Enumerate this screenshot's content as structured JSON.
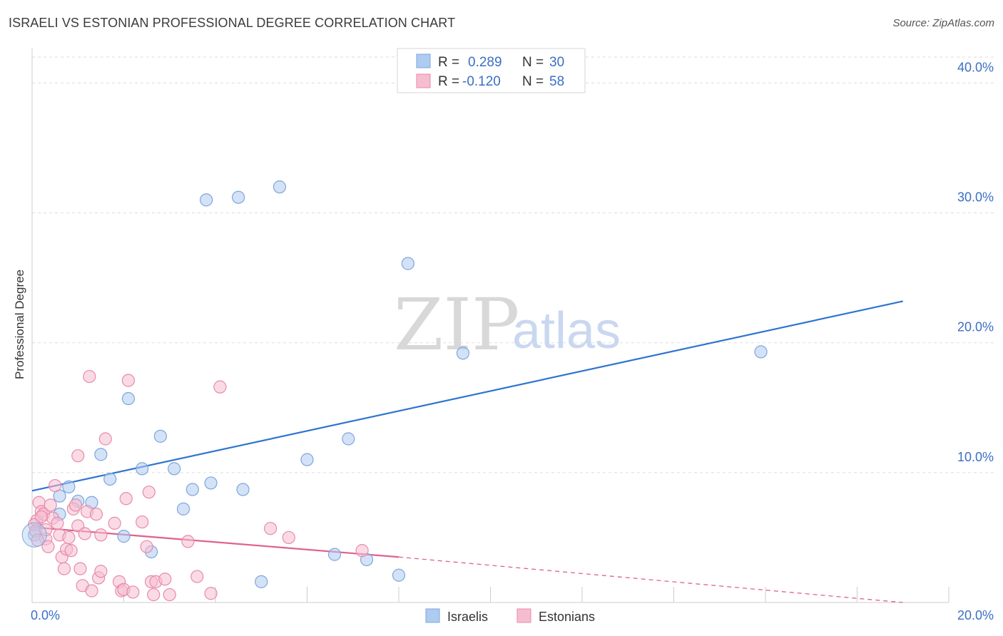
{
  "title": "ISRAELI VS ESTONIAN PROFESSIONAL DEGREE CORRELATION CHART",
  "source": "Source: ZipAtlas.com",
  "watermark": {
    "zip": "ZIP",
    "atlas": "atlas"
  },
  "colors": {
    "blue_fill": "#aecbf0",
    "blue_stroke": "#7ea6dc",
    "blue_line": "#2f74d0",
    "pink_fill": "#f6bdd0",
    "pink_stroke": "#e88aaa",
    "pink_line": "#e0608f",
    "tick_text": "#3a6fc4",
    "grid": "#dddddd"
  },
  "legend": {
    "rows": [
      {
        "r_label": "R =",
        "r_value": "0.289",
        "n_label": "N =",
        "n_value": "30"
      },
      {
        "r_label": "R =",
        "r_value": "-0.120",
        "n_label": "N =",
        "n_value": "58"
      }
    ]
  },
  "bottom_legend": {
    "series1": "Israelis",
    "series2": "Estonians"
  },
  "chart_data": {
    "type": "scatter",
    "title": "ISRAELI VS ESTONIAN PROFESSIONAL DEGREE CORRELATION CHART",
    "xlabel": "",
    "ylabel": "Professional Degree",
    "xlim": [
      0,
      20
    ],
    "ylim": [
      0,
      42
    ],
    "x_ticks": [
      {
        "value": 0,
        "label": "0.0%"
      },
      {
        "value": 20,
        "label": "20.0%"
      }
    ],
    "y_ticks": [
      {
        "value": 10,
        "label": "10.0%"
      },
      {
        "value": 20,
        "label": "20.0%"
      },
      {
        "value": 30,
        "label": "30.0%"
      },
      {
        "value": 40,
        "label": "40.0%"
      }
    ],
    "series": [
      {
        "name": "Israelis",
        "r": 0.289,
        "n": 30,
        "trend": {
          "x0": 0,
          "y0": 8.6,
          "x1": 19.0,
          "y1": 23.2,
          "dash_to": null
        },
        "points": [
          [
            0.05,
            5.2
          ],
          [
            0.6,
            6.8
          ],
          [
            0.6,
            8.2
          ],
          [
            0.8,
            8.9
          ],
          [
            1.0,
            7.8
          ],
          [
            1.3,
            7.7
          ],
          [
            1.5,
            11.4
          ],
          [
            1.7,
            9.5
          ],
          [
            2.0,
            5.1
          ],
          [
            2.1,
            15.7
          ],
          [
            2.4,
            10.3
          ],
          [
            2.6,
            3.9
          ],
          [
            2.8,
            12.8
          ],
          [
            3.1,
            10.3
          ],
          [
            3.3,
            7.2
          ],
          [
            3.5,
            8.7
          ],
          [
            3.8,
            31.0
          ],
          [
            3.9,
            9.2
          ],
          [
            4.5,
            31.2
          ],
          [
            4.6,
            8.7
          ],
          [
            5.0,
            1.6
          ],
          [
            5.4,
            32.0
          ],
          [
            6.0,
            11.0
          ],
          [
            6.6,
            3.7
          ],
          [
            6.9,
            12.6
          ],
          [
            7.3,
            3.3
          ],
          [
            8.0,
            2.1
          ],
          [
            8.2,
            26.1
          ],
          [
            9.4,
            19.2
          ],
          [
            15.9,
            19.3
          ]
        ]
      },
      {
        "name": "Estonians",
        "r": -0.12,
        "n": 58,
        "trend": {
          "x0": 0,
          "y0": 5.8,
          "x1": 8.0,
          "y1": 3.5,
          "dash_to": {
            "x": 19.0,
            "y": 0.0
          }
        },
        "points": [
          [
            0.1,
            6.3
          ],
          [
            0.15,
            7.7
          ],
          [
            0.2,
            7.0
          ],
          [
            0.25,
            6.8
          ],
          [
            0.3,
            4.9
          ],
          [
            0.35,
            4.3
          ],
          [
            0.4,
            7.5
          ],
          [
            0.45,
            6.5
          ],
          [
            0.5,
            9.0
          ],
          [
            0.55,
            6.1
          ],
          [
            0.6,
            5.2
          ],
          [
            0.65,
            3.5
          ],
          [
            0.7,
            2.6
          ],
          [
            0.75,
            4.1
          ],
          [
            0.8,
            5.0
          ],
          [
            0.85,
            4.0
          ],
          [
            0.9,
            7.2
          ],
          [
            0.95,
            7.5
          ],
          [
            1.0,
            11.3
          ],
          [
            1.0,
            5.9
          ],
          [
            1.05,
            2.6
          ],
          [
            1.1,
            1.3
          ],
          [
            1.15,
            5.3
          ],
          [
            1.2,
            7.0
          ],
          [
            1.25,
            17.4
          ],
          [
            1.3,
            0.9
          ],
          [
            1.4,
            6.8
          ],
          [
            1.45,
            1.9
          ],
          [
            1.5,
            5.2
          ],
          [
            1.5,
            2.4
          ],
          [
            1.6,
            12.6
          ],
          [
            1.8,
            6.1
          ],
          [
            1.9,
            1.6
          ],
          [
            1.95,
            0.9
          ],
          [
            2.0,
            1.0
          ],
          [
            2.05,
            8.0
          ],
          [
            2.1,
            17.1
          ],
          [
            2.2,
            0.8
          ],
          [
            2.4,
            6.2
          ],
          [
            2.5,
            4.3
          ],
          [
            2.55,
            8.5
          ],
          [
            2.6,
            1.6
          ],
          [
            2.65,
            0.6
          ],
          [
            2.7,
            1.6
          ],
          [
            2.9,
            1.8
          ],
          [
            3.0,
            0.6
          ],
          [
            3.4,
            4.7
          ],
          [
            3.6,
            2.0
          ],
          [
            3.9,
            0.7
          ],
          [
            4.1,
            16.6
          ],
          [
            5.2,
            5.7
          ],
          [
            5.6,
            5.0
          ],
          [
            7.2,
            4.0
          ],
          [
            0.05,
            6.0
          ],
          [
            0.08,
            5.5
          ],
          [
            0.12,
            4.8
          ],
          [
            0.3,
            5.6
          ],
          [
            0.2,
            6.6
          ]
        ]
      }
    ]
  }
}
